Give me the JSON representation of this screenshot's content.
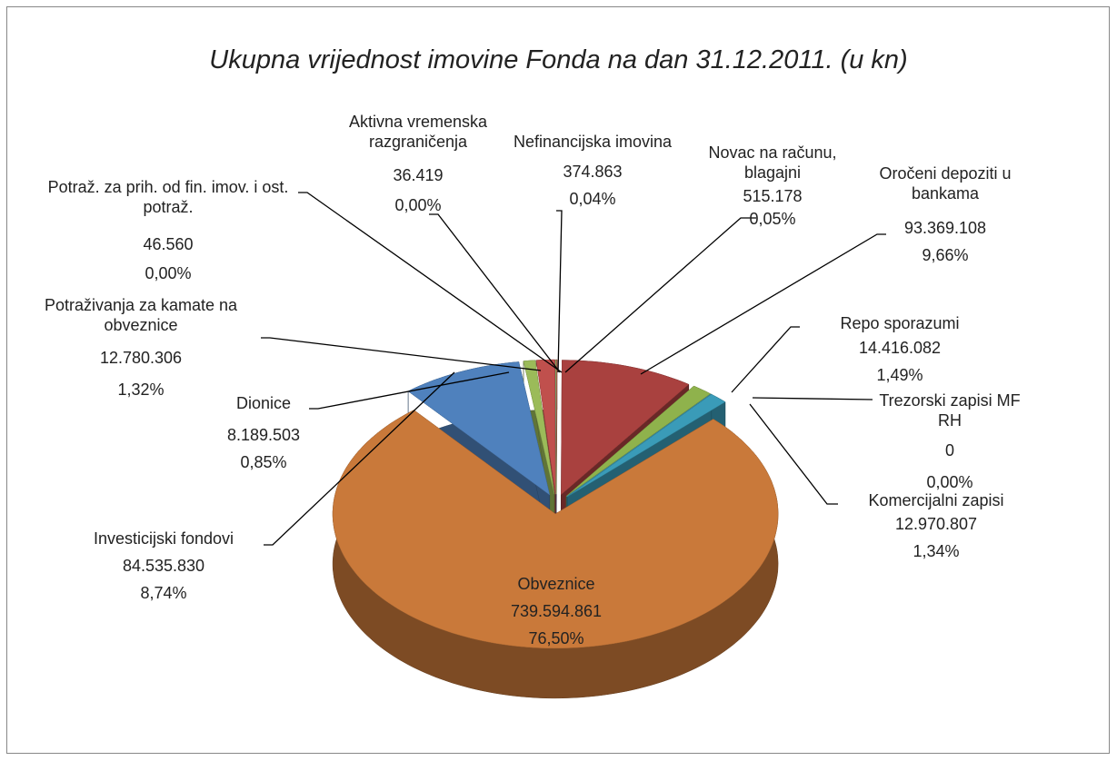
{
  "chart_data": {
    "type": "pie",
    "title": "Ukupna vrijednost imovine Fonda na dan 31.12.2011. (u kn)",
    "categories": [
      "Novac na računu, blagajni",
      "Oročeni depoziti u bankama",
      "Repo sporazumi",
      "Trezorski zapisi MF RH",
      "Komercijalni zapisi",
      "Obveznice",
      "Investicijski fondovi",
      "Dionice",
      "Potraživanja za kamate na obveznice",
      "Potraž. za prih. od fin. imov. i ost. potraž.",
      "Aktivna vremenska razgraničenja",
      "Nefinancijska imovina"
    ],
    "values": [
      515178,
      93369108,
      14416082,
      0,
      12970807,
      739594861,
      84535830,
      8189503,
      12780306,
      46560,
      36419,
      374863
    ],
    "value_labels": [
      "515.178",
      "93.369.108",
      "14.416.082",
      "0",
      "12.970.807",
      "739.594.861",
      "84.535.830",
      "8.189.503",
      "12.780.306",
      "46.560",
      "36.419",
      "374.863"
    ],
    "percent_labels": [
      "0,05%",
      "9,66%",
      "1,49%",
      "0,00%",
      "1,34%",
      "76,50%",
      "8,74%",
      "0,85%",
      "1,32%",
      "0,00%",
      "0,00%",
      "0,04%"
    ],
    "colors": [
      "#c0504d",
      "#a9413f",
      "#8fb24c",
      "#4bacc6",
      "#3a9bb8",
      "#c9793a",
      "#4f81bd",
      "#9bbb59",
      "#c0504d",
      "#8064a2",
      "#4bacc6",
      "#9bbb59"
    ]
  }
}
